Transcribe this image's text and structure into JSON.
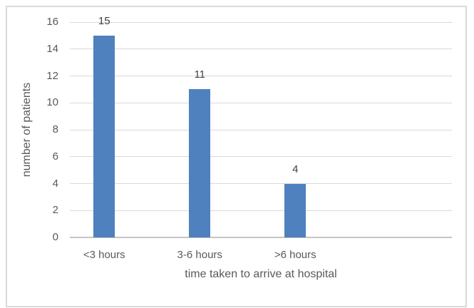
{
  "chart_data": {
    "type": "bar",
    "title": "",
    "categories": [
      "<3 hours",
      "3-6 hours",
      ">6 hours"
    ],
    "values": [
      15,
      11,
      4
    ],
    "data_labels": [
      "15",
      "11",
      "4"
    ],
    "xlabel": "time taken to arrive at hospital",
    "ylabel": "number of patients",
    "ylim": [
      0,
      16
    ],
    "yticks": [
      0,
      2,
      4,
      6,
      8,
      10,
      12,
      14,
      16
    ],
    "grid": "horizontal",
    "legend": "none",
    "bar_color": "#4e81bd",
    "gridline_color": "#d9d9d9",
    "axis_line_color": "#c6c6c6",
    "text_color": "#595959",
    "data_label_color": "#404040",
    "border_color": "#d9d9d9",
    "background": "#ffffff",
    "bar_center_fractions": [
      0.09,
      0.34,
      0.59
    ]
  }
}
